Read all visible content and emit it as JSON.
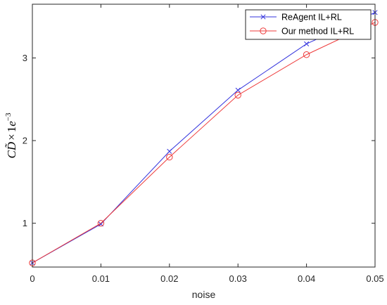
{
  "chart_data": {
    "type": "line",
    "xlabel": "noise",
    "ylabel": "C D̃ ×1e⁻³",
    "ylabel_parts": {
      "c": "C",
      "d": "D̃",
      "times": "×",
      "one": "1",
      "e": "e",
      "exp": "−3"
    },
    "x": [
      0,
      0.01,
      0.02,
      0.03,
      0.04,
      0.05
    ],
    "xlim": [
      0,
      0.05
    ],
    "ylim": [
      0.47,
      3.65
    ],
    "xticks": [
      {
        "value": 0,
        "label": "0"
      },
      {
        "value": 0.01,
        "label": "0.01"
      },
      {
        "value": 0.02,
        "label": "0.02"
      },
      {
        "value": 0.03,
        "label": "0.03"
      },
      {
        "value": 0.04,
        "label": "0.04"
      },
      {
        "value": 0.05,
        "label": "0.05"
      }
    ],
    "yticks": [
      {
        "value": 1,
        "label": "1"
      },
      {
        "value": 2,
        "label": "2"
      },
      {
        "value": 3,
        "label": "3"
      }
    ],
    "grid": false,
    "legend_position": "top-right",
    "series": [
      {
        "name": "ReAgent IL+RL",
        "color": "#3333dd",
        "marker": "x",
        "values": [
          0.52,
          0.99,
          1.87,
          2.61,
          3.17,
          3.55
        ]
      },
      {
        "name": "Our method IL+RL",
        "color": "#ee3b3b",
        "marker": "circle",
        "values": [
          0.52,
          1.0,
          1.8,
          2.55,
          3.04,
          3.43
        ]
      }
    ]
  }
}
